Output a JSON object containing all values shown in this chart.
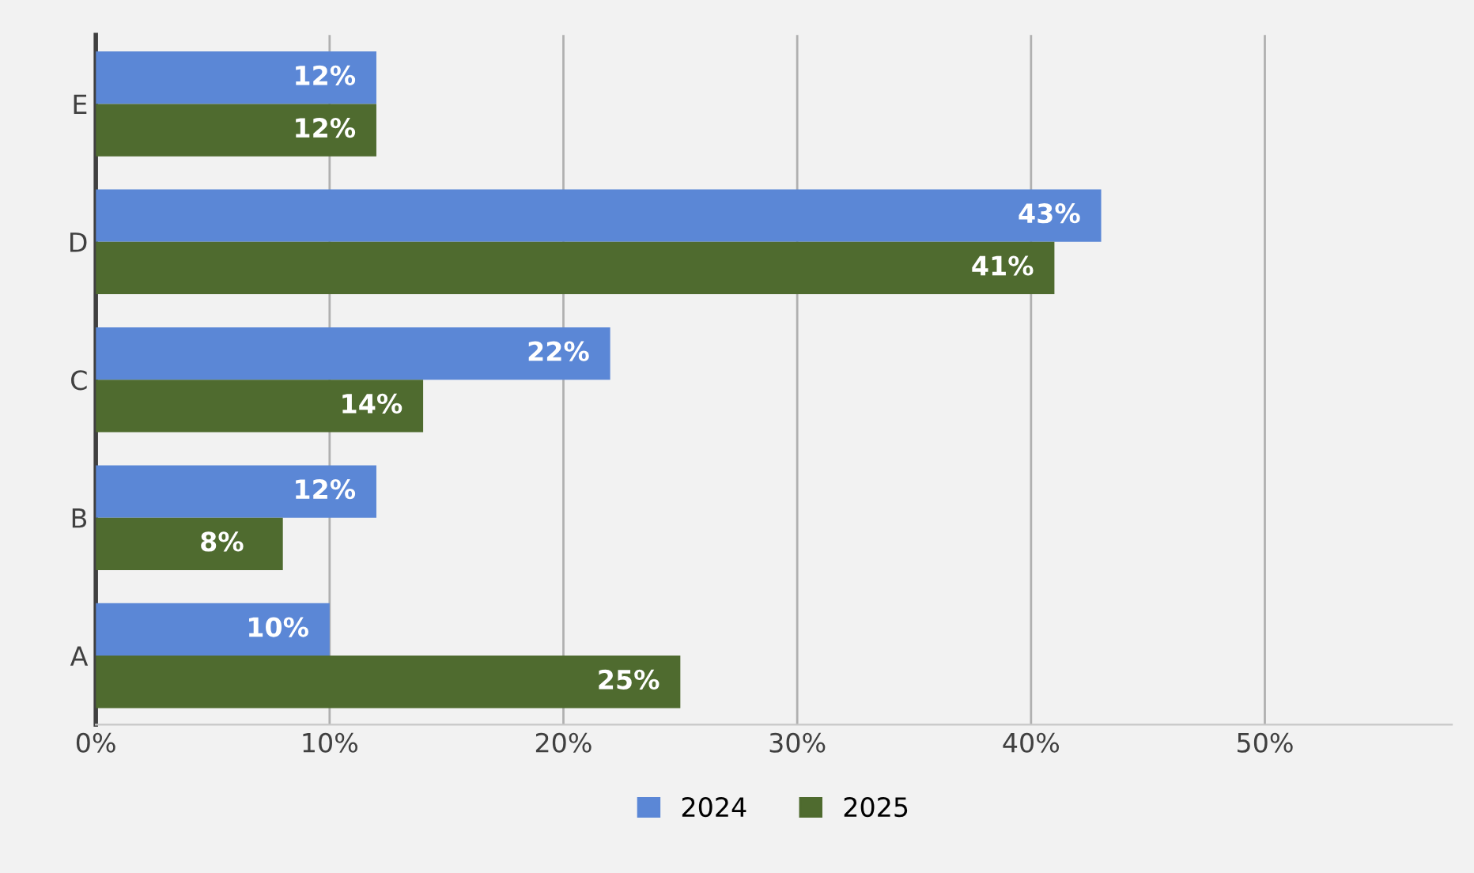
{
  "chart_data": {
    "type": "bar",
    "orientation": "horizontal",
    "categories": [
      "E",
      "D",
      "C",
      "B",
      "A"
    ],
    "series": [
      {
        "name": "2024",
        "color": "#5b87d6",
        "values": [
          12,
          43,
          22,
          12,
          10
        ],
        "value_labels": [
          "12%",
          "43%",
          "22%",
          "12%",
          "10%"
        ]
      },
      {
        "name": "2025",
        "color": "#4f6b2f",
        "values": [
          12,
          41,
          14,
          8,
          25
        ],
        "value_labels": [
          "12%",
          "41%",
          "14%",
          "8%",
          "25%"
        ]
      }
    ],
    "xlim": [
      0,
      58
    ],
    "xticks": [
      {
        "value": 0,
        "label": "0%"
      },
      {
        "value": 10,
        "label": "10%"
      },
      {
        "value": 20,
        "label": "20%"
      },
      {
        "value": 30,
        "label": "30%"
      },
      {
        "value": 40,
        "label": "40%"
      },
      {
        "value": 50,
        "label": "50%"
      }
    ],
    "grid": "x",
    "legend": "bottom"
  }
}
